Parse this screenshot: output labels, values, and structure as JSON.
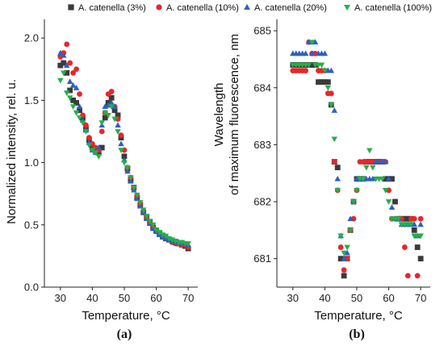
{
  "legend": {
    "series_colors": [
      "#3a3a3a",
      "#e8262a",
      "#2f5fbf",
      "#23b04a"
    ],
    "series_markers": [
      "square",
      "circle",
      "triangle-up",
      "triangle-down"
    ]
  },
  "chart_data": [
    {
      "type": "scatter",
      "panel_label": "(a)",
      "xlabel": "Temperature, °C",
      "ylabel": "Normalized intensity, rel. u.",
      "xlim": [
        25,
        73
      ],
      "ylim": [
        0,
        2.15
      ],
      "xticks": [
        "30",
        "40",
        "50",
        "60",
        "70"
      ],
      "yticks": [
        "0.0",
        "0.5",
        "1.0",
        "1.5",
        "2.0"
      ],
      "grid": false,
      "legend_position": "top",
      "series": [
        {
          "name": "A. catenella (3%)",
          "marker": "square",
          "color": "#3a3a3a",
          "x": [
            30,
            31,
            32,
            33,
            34,
            35,
            36,
            37,
            38,
            39,
            40,
            41,
            42,
            43,
            44,
            45,
            46,
            47,
            48,
            49,
            50,
            51,
            52,
            53,
            54,
            55,
            56,
            57,
            58,
            59,
            60,
            61,
            62,
            63,
            64,
            65,
            66,
            67,
            68,
            69,
            70
          ],
          "y": [
            1.78,
            1.8,
            1.72,
            1.58,
            1.5,
            1.48,
            1.42,
            1.36,
            1.27,
            1.18,
            1.12,
            1.1,
            1.08,
            1.12,
            1.36,
            1.48,
            1.52,
            1.42,
            1.38,
            1.2,
            1.05,
            0.95,
            0.86,
            0.8,
            0.72,
            0.66,
            0.6,
            0.56,
            0.52,
            0.48,
            0.45,
            0.43,
            0.41,
            0.39,
            0.38,
            0.37,
            0.36,
            0.35,
            0.34,
            0.33,
            0.31
          ]
        },
        {
          "name": "A. catenella (10%)",
          "marker": "circle",
          "color": "#e8262a",
          "x": [
            30,
            31,
            32,
            33,
            34,
            35,
            36,
            37,
            38,
            39,
            40,
            41,
            42,
            43,
            44,
            45,
            46,
            47,
            48,
            49,
            50,
            51,
            52,
            53,
            54,
            55,
            56,
            57,
            58,
            59,
            60,
            61,
            62,
            63,
            64,
            65,
            66,
            67,
            68,
            69,
            70
          ],
          "y": [
            1.85,
            1.88,
            1.95,
            1.8,
            1.72,
            1.75,
            1.55,
            1.38,
            1.3,
            1.2,
            1.15,
            1.12,
            1.1,
            1.25,
            1.4,
            1.55,
            1.57,
            1.45,
            1.35,
            1.22,
            1.1,
            0.96,
            0.88,
            0.8,
            0.73,
            0.67,
            0.61,
            0.56,
            0.52,
            0.48,
            0.46,
            0.43,
            0.41,
            0.4,
            0.38,
            0.36,
            0.35,
            0.35,
            0.34,
            0.34,
            0.32
          ]
        },
        {
          "name": "A. catenella (20%)",
          "marker": "triangle-up",
          "color": "#2f5fbf",
          "x": [
            30,
            31,
            32,
            33,
            34,
            35,
            36,
            37,
            38,
            39,
            40,
            41,
            42,
            43,
            44,
            45,
            46,
            47,
            48,
            49,
            50,
            51,
            52,
            53,
            54,
            55,
            56,
            57,
            58,
            59,
            60,
            61,
            62,
            63,
            64,
            65,
            66,
            67,
            68,
            69,
            70
          ],
          "y": [
            1.88,
            1.86,
            1.78,
            1.65,
            1.62,
            1.6,
            1.45,
            1.34,
            1.26,
            1.16,
            1.1,
            1.08,
            1.12,
            1.3,
            1.45,
            1.46,
            1.48,
            1.45,
            1.3,
            1.15,
            1.02,
            0.93,
            0.85,
            0.78,
            0.71,
            0.65,
            0.6,
            0.55,
            0.51,
            0.47,
            0.45,
            0.42,
            0.4,
            0.39,
            0.38,
            0.37,
            0.36,
            0.36,
            0.35,
            0.35,
            0.34
          ]
        },
        {
          "name": "A. catenella (100%)",
          "marker": "triangle-down",
          "color": "#23b04a",
          "x": [
            30,
            31,
            32,
            33,
            34,
            35,
            36,
            37,
            38,
            39,
            40,
            41,
            42,
            43,
            44,
            45,
            46,
            47,
            48,
            49,
            50,
            51,
            52,
            53,
            54,
            55,
            56,
            57,
            58,
            59,
            60,
            61,
            62,
            63,
            64,
            65,
            66,
            67,
            68,
            69,
            70
          ],
          "y": [
            1.66,
            1.72,
            1.56,
            1.52,
            1.45,
            1.4,
            1.36,
            1.32,
            1.25,
            1.14,
            1.1,
            1.08,
            1.05,
            1.32,
            1.4,
            1.38,
            1.45,
            1.35,
            1.25,
            1.1,
            1.0,
            0.96,
            0.88,
            0.8,
            0.74,
            0.68,
            0.62,
            0.57,
            0.53,
            0.5,
            0.46,
            0.44,
            0.42,
            0.41,
            0.39,
            0.38,
            0.37,
            0.36,
            0.36,
            0.35,
            0.35
          ]
        }
      ]
    },
    {
      "type": "scatter",
      "panel_label": "(b)",
      "xlabel": "Temperature, °C",
      "ylabel": "Wavelength of maximum fluorescence, nm",
      "ylabel_lines": [
        "Wavelength",
        "of maximum fluorescence, nm"
      ],
      "xlim": [
        25,
        73
      ],
      "ylim": [
        680.5,
        685.2
      ],
      "xticks": [
        "30",
        "40",
        "50",
        "60",
        "70"
      ],
      "yticks": [
        "681",
        "682",
        "683",
        "684",
        "685"
      ],
      "grid": false,
      "legend_position": "top",
      "series": [
        {
          "name": "A. catenella (3%)",
          "marker": "square",
          "color": "#3a3a3a",
          "x": [
            30,
            31,
            32,
            33,
            34,
            35,
            36,
            37,
            38,
            39,
            40,
            41,
            42,
            43,
            44,
            45,
            46,
            47,
            48,
            49,
            50,
            51,
            52,
            53,
            54,
            55,
            56,
            57,
            58,
            59,
            60,
            61,
            62,
            63,
            64,
            65,
            66,
            67,
            68,
            69,
            70
          ],
          "y": [
            684.4,
            684.4,
            684.4,
            684.4,
            684.4,
            684.4,
            684.4,
            684.4,
            684.1,
            684.1,
            684.1,
            684.1,
            683.7,
            682.7,
            682.6,
            681.0,
            680.7,
            681.0,
            681.5,
            682.0,
            682.4,
            682.4,
            682.4,
            682.7,
            682.7,
            682.7,
            682.7,
            682.7,
            682.7,
            682.4,
            682.4,
            682.4,
            682.0,
            681.7,
            681.7,
            681.7,
            681.7,
            681.7,
            681.5,
            681.2,
            681.0
          ]
        },
        {
          "name": "A. catenella (10%)",
          "marker": "circle",
          "color": "#e8262a",
          "x": [
            30,
            31,
            32,
            33,
            34,
            35,
            36,
            37,
            38,
            39,
            40,
            41,
            42,
            43,
            44,
            45,
            46,
            47,
            48,
            49,
            50,
            51,
            52,
            53,
            54,
            55,
            56,
            57,
            58,
            59,
            60,
            61,
            62,
            63,
            64,
            65,
            66,
            67,
            68,
            69,
            70
          ],
          "y": [
            684.3,
            684.3,
            684.3,
            684.3,
            684.3,
            684.8,
            684.6,
            684.6,
            684.3,
            684.3,
            684.3,
            683.9,
            683.9,
            682.7,
            682.2,
            681.2,
            680.8,
            681.0,
            681.5,
            681.7,
            682.2,
            682.7,
            682.7,
            682.7,
            682.7,
            682.7,
            682.7,
            682.7,
            682.7,
            682.7,
            682.2,
            681.7,
            681.7,
            681.7,
            681.7,
            681.2,
            680.7,
            681.7,
            681.7,
            680.7,
            681.7
          ]
        },
        {
          "name": "A. catenella (20%)",
          "marker": "triangle-up",
          "color": "#2f5fbf",
          "x": [
            30,
            31,
            32,
            33,
            34,
            35,
            36,
            37,
            38,
            39,
            40,
            41,
            42,
            43,
            44,
            45,
            46,
            47,
            48,
            49,
            50,
            51,
            52,
            53,
            54,
            55,
            56,
            57,
            58,
            59,
            60,
            61,
            62,
            63,
            64,
            65,
            66,
            67,
            68,
            69,
            70
          ],
          "y": [
            684.6,
            684.6,
            684.6,
            684.6,
            684.6,
            684.8,
            684.6,
            684.8,
            684.6,
            684.6,
            684.6,
            684.3,
            684.3,
            683.6,
            682.4,
            681.4,
            681.0,
            681.1,
            681.7,
            682.0,
            682.4,
            682.4,
            682.4,
            682.4,
            682.4,
            682.4,
            682.7,
            682.7,
            682.7,
            682.7,
            682.4,
            681.9,
            681.7,
            681.7,
            681.6,
            681.6,
            681.6,
            681.6,
            681.6,
            681.4,
            681.6
          ]
        },
        {
          "name": "A. catenella (100%)",
          "marker": "triangle-down",
          "color": "#23b04a",
          "x": [
            30,
            31,
            32,
            33,
            34,
            35,
            36,
            37,
            38,
            39,
            40,
            41,
            42,
            43,
            44,
            45,
            46,
            47,
            48,
            49,
            50,
            51,
            52,
            53,
            54,
            55,
            56,
            57,
            58,
            59,
            60,
            61,
            62,
            63,
            64,
            65,
            66,
            67,
            68,
            69,
            70
          ],
          "y": [
            684.4,
            684.4,
            684.4,
            684.4,
            684.4,
            684.4,
            684.8,
            684.4,
            684.4,
            684.4,
            684.3,
            684.0,
            683.7,
            683.1,
            682.2,
            681.4,
            681.1,
            681.2,
            681.5,
            682.0,
            682.2,
            682.4,
            682.4,
            682.6,
            682.9,
            682.6,
            682.4,
            682.4,
            682.4,
            682.2,
            682.0,
            681.7,
            681.7,
            681.7,
            681.6,
            681.6,
            681.6,
            681.6,
            681.4,
            681.4,
            681.4
          ]
        }
      ]
    }
  ]
}
